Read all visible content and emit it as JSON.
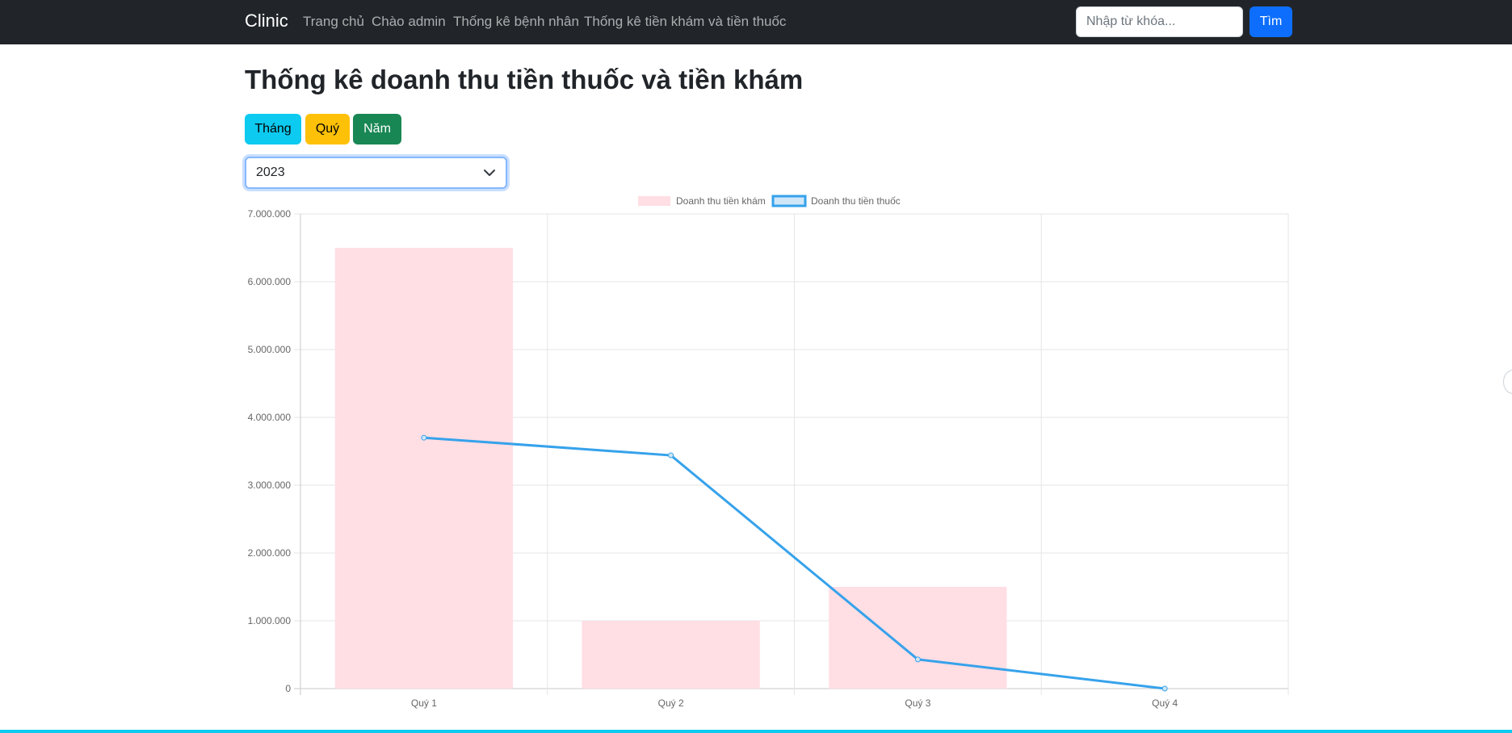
{
  "navbar": {
    "brand": "Clinic",
    "links": [
      "Trang chủ",
      "Chào admin",
      "Thống kê bệnh nhân",
      "Thống kê tiền khám và tiền thuốc"
    ],
    "search_placeholder": "Nhập từ khóa...",
    "search_button": "Tìm"
  },
  "page": {
    "title": "Thống kê doanh thu tiền thuốc và tiền khám"
  },
  "filters": {
    "month_label": "Tháng",
    "quarter_label": "Quý",
    "year_label": "Năm",
    "selected_year": "2023"
  },
  "chart_data": {
    "type": "bar",
    "categories": [
      "Quý 1",
      "Quý 2",
      "Quý 3",
      "Quý 4"
    ],
    "series": [
      {
        "name": "Doanh thu tiền khám",
        "type": "bar",
        "values": [
          6500000,
          1000000,
          1500000,
          0
        ],
        "color": "#ffdee4"
      },
      {
        "name": "Doanh thu tiền thuốc",
        "type": "line",
        "values": [
          3700000,
          3440000,
          430000,
          0
        ],
        "color": "#36a2eb"
      }
    ],
    "ylim": [
      0,
      7000000
    ],
    "yticks": [
      0,
      1000000,
      2000000,
      3000000,
      4000000,
      5000000,
      6000000,
      7000000
    ],
    "ytick_labels": [
      "0",
      "1.000.000",
      "2.000.000",
      "3.000.000",
      "4.000.000",
      "5.000.000",
      "6.000.000",
      "7.000.000"
    ],
    "grid": true,
    "legend": "top"
  },
  "colors": {
    "navbar_bg": "#212529",
    "primary": "#0d6efd",
    "info": "#0dcaf0",
    "warning": "#ffc107",
    "success": "#198754"
  }
}
